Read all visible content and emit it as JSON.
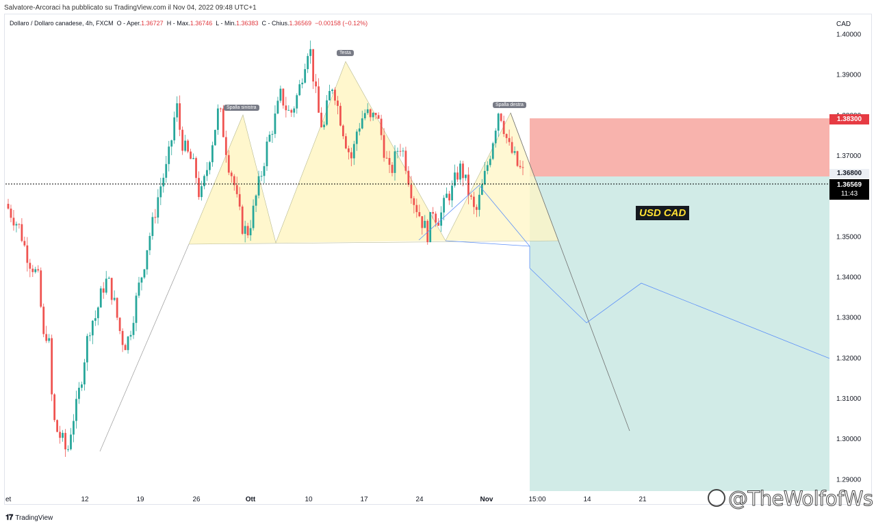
{
  "header": {
    "publisher_line": "Salvatore-Arcoraci ha pubblicato su TradingView.com il Nov 04, 2022 09:48 UTC+1"
  },
  "legend": {
    "symbol": "Dollaro / Dollaro canadese, 4h, FXCM",
    "o_label": "O",
    "open_label": "Aper.",
    "open": "1.36727",
    "h_label": "H",
    "high_label": "Max.",
    "high": "1.36746",
    "l_label": "L",
    "low_label": "Min.",
    "low": "1.36383",
    "c_label": "C",
    "close_label": "Chius.",
    "close": "1.36569",
    "change": "−0.00158 (−0.12%)"
  },
  "axis": {
    "currency": "CAD",
    "ticks": [
      "1.40000",
      "1.39000",
      "1.38000",
      "1.37000",
      "1.36000",
      "1.35000",
      "1.34000",
      "1.33000",
      "1.32000",
      "1.31000",
      "1.30000",
      "1.29000"
    ],
    "x_labels": [
      "et",
      "12",
      "19",
      "26",
      "Ott",
      "10",
      "17",
      "24",
      "Nov",
      "15:00",
      "14",
      "21"
    ]
  },
  "price_tags": {
    "stop": "1.38300",
    "entry": "1.36800",
    "last": "1.36569",
    "countdown": "11:43"
  },
  "patterns": {
    "left_shoulder": "Spalla sinistra",
    "head": "Testa",
    "right_shoulder": "Spalla destra"
  },
  "annotation": {
    "label": "USD CAD"
  },
  "footer": {
    "brand": "TradingView"
  },
  "watermark": {
    "text": "@TheWolfofWs"
  },
  "colors": {
    "up": "#26a69a",
    "down": "#ef5350",
    "stop_zone": "#f8b3ad",
    "target_zone": "#d1ebe7",
    "pattern_fill": "#fff6c4",
    "projection": "#5b8ff9"
  },
  "chart_data": {
    "type": "candlestick",
    "symbol": "USDCAD",
    "timeframe": "4h",
    "y_range": [
      1.287,
      1.405
    ],
    "last_price": 1.36569,
    "position": {
      "side": "short",
      "entry": 1.368,
      "stop": 1.383,
      "target": 1.287
    },
    "price_path": [
      [
        1.358,
        1.356
      ],
      [
        1.354,
        1.352
      ],
      [
        1.3475,
        1.344
      ],
      [
        1.342,
        1.339
      ],
      [
        1.3245,
        1.327
      ],
      [
        1.305,
        1.3015
      ],
      [
        1.2995,
        1.296
      ],
      [
        1.304,
        1.308
      ],
      [
        1.315,
        1.323
      ],
      [
        1.329,
        1.33
      ],
      [
        1.335,
        1.339
      ],
      [
        1.338,
        1.333
      ],
      [
        1.327,
        1.323
      ],
      [
        1.325,
        1.331
      ],
      [
        1.337,
        1.342
      ],
      [
        1.3485,
        1.353
      ],
      [
        1.359,
        1.364
      ],
      [
        1.367,
        1.374
      ],
      [
        1.383,
        1.374
      ],
      [
        1.371,
        1.369
      ],
      [
        1.366,
        1.359
      ],
      [
        1.364,
        1.37
      ],
      [
        1.376,
        1.382
      ],
      [
        1.375,
        1.368
      ],
      [
        1.364,
        1.357
      ],
      [
        1.352,
        1.351
      ],
      [
        1.355,
        1.361
      ],
      [
        1.366,
        1.372
      ],
      [
        1.376,
        1.38
      ],
      [
        1.385,
        1.382
      ],
      [
        1.38,
        1.383
      ],
      [
        1.387,
        1.393
      ],
      [
        1.398,
        1.388
      ],
      [
        1.38,
        1.376
      ],
      [
        1.384,
        1.388
      ],
      [
        1.382,
        1.377
      ],
      [
        1.372,
        1.369
      ],
      [
        1.376,
        1.379
      ],
      [
        1.381,
        1.378
      ],
      [
        1.381,
        1.376
      ],
      [
        1.37,
        1.365
      ],
      [
        1.369,
        1.373
      ],
      [
        1.37,
        1.364
      ],
      [
        1.359,
        1.356
      ],
      [
        1.353,
        1.3505
      ],
      [
        1.357,
        1.354
      ],
      [
        1.356,
        1.36
      ],
      [
        1.361,
        1.365
      ],
      [
        1.367,
        1.363
      ],
      [
        1.359,
        1.355
      ],
      [
        1.36,
        1.365
      ],
      [
        1.37,
        1.376
      ],
      [
        1.382,
        1.377
      ],
      [
        1.372,
        1.37
      ],
      [
        1.367,
        1.3657
      ]
    ],
    "pattern_points": {
      "left_shoulder": [
        [
          1.35,
          1.383,
          1.35
        ]
      ],
      "head": [
        [
          1.3505,
          1.398,
          1.3505
        ]
      ],
      "right_shoulder": [
        [
          1.3505,
          1.384,
          1.351
        ]
      ],
      "neckline": 1.3505
    },
    "projection_path": [
      1.3495,
      1.344,
      1.329,
      1.3395,
      1.3195
    ],
    "grey_projection_end": 1.301
  }
}
